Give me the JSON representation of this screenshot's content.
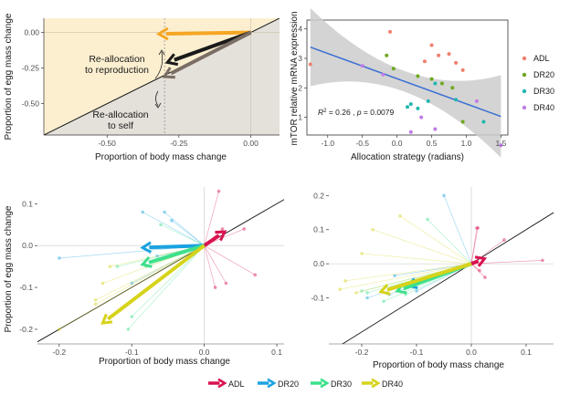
{
  "colors": {
    "ADL": "#d9124f",
    "DR20": "#1aa3e0",
    "DR30": "#3de08a",
    "DR40": "#d6d31a",
    "scatter_ADL": "#f07f6e",
    "scatter_DR20": "#6fa81f",
    "scatter_DR30": "#1fb7b0",
    "scatter_DR40": "#c07ce6",
    "reproduction_zone": "#fcefd0",
    "self_zone": "#e4e0da",
    "arrow_reproduction": "#f5a623",
    "arrow_middle": "#1a1a1a",
    "arrow_self": "#7a6e64",
    "fit_line": "#3b6fd4",
    "ci_band": "#cccccc"
  },
  "legend": {
    "scatter_items": [
      "ADL",
      "DR20",
      "DR30",
      "DR40"
    ],
    "bottom_items": [
      "ADL",
      "DR20",
      "DR30",
      "DR40"
    ]
  },
  "chart_data": [
    {
      "type": "line",
      "panel": "conceptual",
      "xlabel": "Proportion of body mass change",
      "ylabel": "Proportion of egg mass change",
      "xlim": [
        -0.72,
        0.1
      ],
      "ylim": [
        -0.72,
        0.1
      ],
      "xticks": [
        -0.5,
        -0.25,
        0.0
      ],
      "xtick_labels": [
        "-0.50",
        "-0.25",
        "0.00"
      ],
      "yticks": [
        0.0,
        -0.25,
        -0.5
      ],
      "ytick_labels": [
        "0.00",
        "-0.25",
        "-0.50"
      ],
      "vertical_reference_x": -0.3,
      "annotations": [
        "Re-allocation\nto reproduction",
        "Re-allocation\nto self"
      ],
      "arrows": [
        {
          "x": -0.32,
          "y": -0.01
        },
        {
          "x": -0.29,
          "y": -0.21
        },
        {
          "x": -0.3,
          "y": -0.31
        }
      ]
    },
    {
      "type": "scatter",
      "panel": "mTOR",
      "xlabel": "Allocation strategy (radians)",
      "ylabel": "mTOR relative mRNA expression",
      "xlim": [
        -1.3,
        1.6
      ],
      "ylim": [
        0.4,
        4.3
      ],
      "xticks": [
        -1.0,
        -0.5,
        0.0,
        0.5,
        1.0,
        1.5
      ],
      "xtick_labels": [
        "-1.0",
        "-0.5",
        "0.0",
        "0.5",
        "1.0",
        "1.5"
      ],
      "yticks": [
        1,
        2,
        3,
        4
      ],
      "ytick_labels": [
        "1",
        "2",
        "3",
        "4"
      ],
      "annotation": "R2 = 0.26 , p = 0.0079",
      "fit": {
        "x": [
          -1.25,
          1.5
        ],
        "y": [
          3.38,
          1.03
        ]
      },
      "series": [
        {
          "name": "ADL",
          "points": [
            [
              -1.25,
              2.8
            ],
            [
              -0.1,
              3.9
            ],
            [
              0.5,
              3.45
            ],
            [
              0.6,
              3.1
            ],
            [
              0.75,
              3.15
            ],
            [
              0.85,
              2.85
            ],
            [
              0.95,
              2.6
            ],
            [
              0.4,
              2.9
            ]
          ]
        },
        {
          "name": "DR20",
          "points": [
            [
              -0.15,
              3.1
            ],
            [
              -0.05,
              2.65
            ],
            [
              0.5,
              2.3
            ],
            [
              0.65,
              2.15
            ],
            [
              0.95,
              0.85
            ],
            [
              0.8,
              2.0
            ],
            [
              0.3,
              2.4
            ]
          ]
        },
        {
          "name": "DR30",
          "points": [
            [
              0.15,
              1.35
            ],
            [
              0.2,
              1.45
            ],
            [
              0.3,
              1.3
            ],
            [
              0.45,
              1.55
            ],
            [
              0.55,
              2.15
            ],
            [
              0.85,
              1.6
            ],
            [
              1.25,
              0.85
            ]
          ]
        },
        {
          "name": "DR40",
          "points": [
            [
              0.2,
              0.5
            ],
            [
              0.35,
              1.0
            ],
            [
              0.55,
              0.6
            ],
            [
              -0.5,
              2.75
            ],
            [
              -0.2,
              2.45
            ],
            [
              1.15,
              1.55
            ],
            [
              1.5,
              0.05
            ]
          ]
        }
      ]
    },
    {
      "type": "line",
      "panel": "vectors-left",
      "xlabel": "Proportion of body mass change",
      "ylabel": "Proportion of egg mass change",
      "xlim": [
        -0.23,
        0.11
      ],
      "ylim": [
        -0.235,
        0.14
      ],
      "xticks": [
        -0.2,
        -0.1,
        0.0,
        0.1
      ],
      "xtick_labels": [
        "-0.2",
        "-0.1",
        "0.0",
        "0.1"
      ],
      "yticks": [
        0.1,
        0.0,
        -0.1,
        -0.2
      ],
      "ytick_labels": [
        "0.1",
        "0.0",
        "-0.1",
        "-0.2"
      ],
      "series": [
        {
          "name": "ADL",
          "mean": [
            0.028,
            0.033
          ],
          "individuals": [
            [
              0.02,
              0.13
            ],
            [
              0.025,
              0.04
            ],
            [
              0.055,
              0.04
            ],
            [
              0.07,
              -0.07
            ],
            [
              0.03,
              -0.09
            ],
            [
              0.015,
              -0.1
            ]
          ]
        },
        {
          "name": "DR20",
          "mean": [
            -0.085,
            -0.005
          ],
          "individuals": [
            [
              -0.2,
              -0.03
            ],
            [
              -0.085,
              0.08
            ],
            [
              -0.055,
              0.08
            ],
            [
              -0.045,
              0.06
            ],
            [
              -0.065,
              -0.025
            ],
            [
              -0.1,
              -0.09
            ]
          ]
        },
        {
          "name": "DR30",
          "mean": [
            -0.085,
            -0.045
          ],
          "individuals": [
            [
              -0.105,
              -0.2
            ],
            [
              -0.1,
              -0.17
            ],
            [
              -0.06,
              0.05
            ],
            [
              -0.08,
              -0.05
            ],
            [
              -0.12,
              -0.05
            ]
          ]
        },
        {
          "name": "DR40",
          "mean": [
            -0.14,
            -0.185
          ],
          "individuals": [
            [
              -0.14,
              -0.09
            ],
            [
              -0.15,
              -0.13
            ],
            [
              -0.15,
              -0.14
            ],
            [
              -0.2,
              -0.2
            ],
            [
              -0.13,
              -0.05
            ]
          ]
        }
      ]
    },
    {
      "type": "line",
      "panel": "vectors-right",
      "xlabel": "Proportion of body mass change",
      "ylabel": "",
      "xlim": [
        -0.26,
        0.15
      ],
      "ylim": [
        -0.235,
        0.225
      ],
      "xticks": [
        -0.2,
        -0.1,
        0.0,
        0.1
      ],
      "xtick_labels": [
        "-0.2",
        "-0.1",
        "0.0",
        "0.1"
      ],
      "yticks": [
        0.2,
        0.1,
        0.0,
        -0.1
      ],
      "ytick_labels": [
        "0.2",
        "0.1",
        "0.0",
        "-0.1"
      ],
      "series": [
        {
          "name": "ADL",
          "mean": [
            0.024,
            0.015
          ],
          "individuals": [
            [
              0.01,
              0.105
            ],
            [
              0.012,
              0.105
            ],
            [
              0.06,
              0.07
            ],
            [
              0.13,
              0.01
            ],
            [
              0.015,
              -0.02
            ],
            [
              0.025,
              -0.04
            ]
          ]
        },
        {
          "name": "DR20",
          "mean": [
            -0.115,
            -0.065
          ],
          "individuals": [
            [
              -0.05,
              0.2
            ],
            [
              -0.15,
              -0.09
            ],
            [
              -0.14,
              -0.035
            ],
            [
              -0.19,
              -0.1
            ],
            [
              -0.1,
              -0.08
            ]
          ]
        },
        {
          "name": "DR30",
          "mean": [
            -0.135,
            -0.08
          ],
          "individuals": [
            [
              -0.16,
              -0.11
            ],
            [
              -0.2,
              -0.08
            ],
            [
              -0.19,
              -0.085
            ],
            [
              -0.08,
              0.13
            ],
            [
              -0.12,
              -0.09
            ]
          ]
        },
        {
          "name": "DR40",
          "mean": [
            -0.165,
            -0.082
          ],
          "individuals": [
            [
              -0.13,
              0.14
            ],
            [
              -0.24,
              -0.075
            ],
            [
              -0.21,
              -0.085
            ],
            [
              -0.2,
              0.03
            ],
            [
              -0.18,
              0.1
            ],
            [
              -0.23,
              -0.05
            ]
          ]
        }
      ]
    }
  ]
}
